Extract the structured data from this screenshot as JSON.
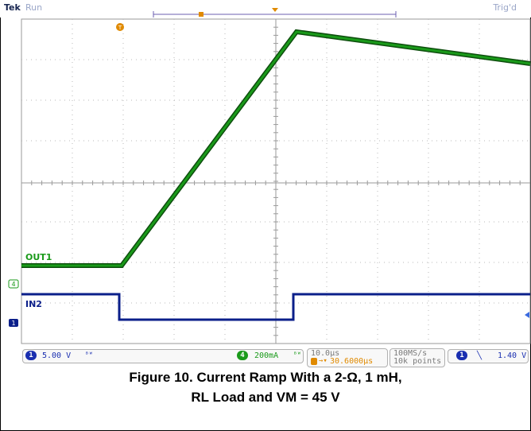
{
  "header": {
    "brand": "Tek",
    "status": "Run",
    "trigger_state": "Trig'd"
  },
  "markers": {
    "trigger_marker": "T",
    "ch4_marker": "4",
    "ch1_marker": "1"
  },
  "traces": {
    "out1_label": "OUT1",
    "in2_label": "IN2",
    "out1_color": "#1a9a1a",
    "in2_color": "#0b1f8a"
  },
  "status_bar": {
    "ch1_num": "1",
    "ch1_scale": "5.00 V",
    "ch1_bw": "ᴮᵂ",
    "ch4_num": "4",
    "ch4_scale": "200mA",
    "ch4_bw": "ᴮᵂ",
    "timebase": "10.0μs",
    "trigger_pos": "30.6000μs",
    "sample_rate": "100MS/s",
    "record_length": "10k points",
    "trig_ch": "1",
    "trig_slope": "╲",
    "trig_level": "1.40 V"
  },
  "caption": {
    "line1": "Figure 10. Current Ramp With a 2-Ω, 1 mH,",
    "line2": "RL Load and VM = 45 V"
  }
}
